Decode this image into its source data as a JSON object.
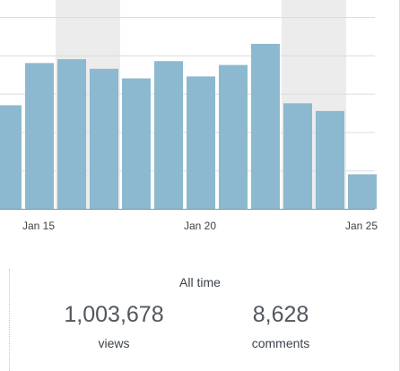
{
  "chart_data": {
    "type": "bar",
    "x_ticks": [
      "Jan 15",
      "Jan 20",
      "Jan 25"
    ],
    "categories": [
      "Jan 14",
      "Jan 15",
      "Jan 16",
      "Jan 17",
      "Jan 18",
      "Jan 19",
      "Jan 20",
      "Jan 21",
      "Jan 22",
      "Jan 23",
      "Jan 24",
      "Jan 25"
    ],
    "values": [
      54,
      76,
      78,
      73,
      68,
      77,
      69,
      75,
      86,
      55,
      51,
      18
    ],
    "weekend_shading": [
      [
        "Jan 16",
        "Jan 17"
      ],
      [
        "Jan 23",
        "Jan 24"
      ]
    ],
    "ylim": [
      0,
      100
    ],
    "grid": true,
    "colors": {
      "bar": "#8cb9cf",
      "weekend_band": "#ececec",
      "grid": "#dcdcde",
      "axis": "#8c8f94"
    }
  },
  "summary": {
    "title": "All time",
    "views_value": "1,003,678",
    "views_label": "views",
    "comments_value": "8,628",
    "comments_label": "comments"
  }
}
